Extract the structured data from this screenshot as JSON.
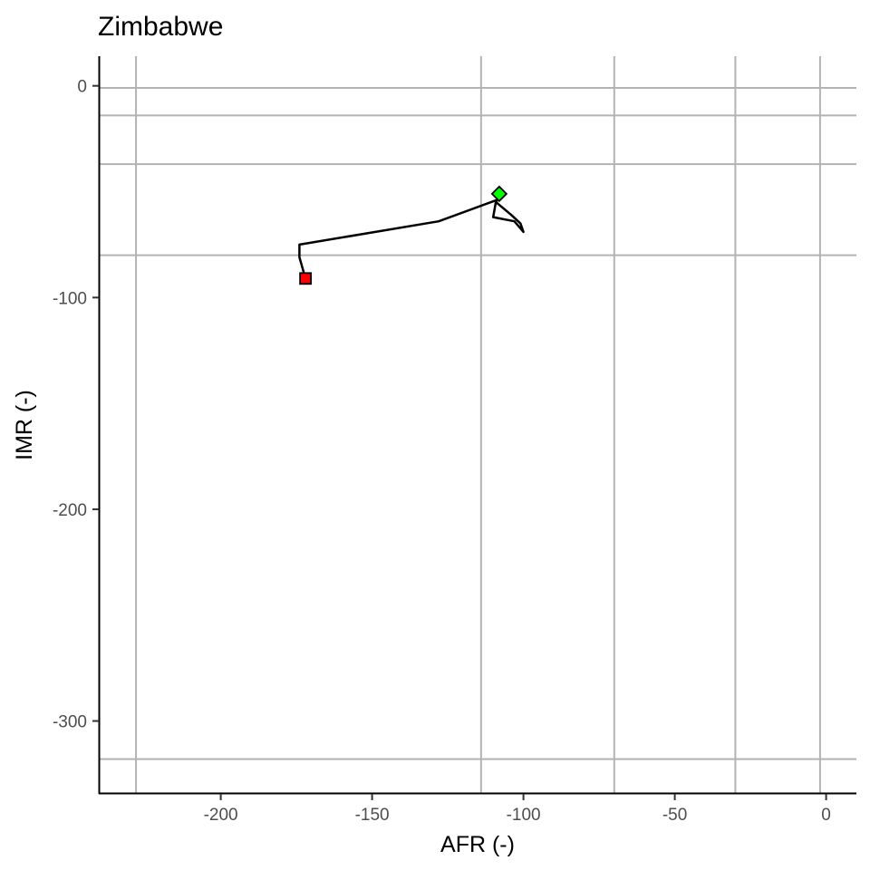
{
  "chart_data": {
    "type": "line",
    "title": "Zimbabwe",
    "xlabel": "AFR (-)",
    "ylabel": "IMR (-)",
    "xlim": [
      -240,
      10
    ],
    "ylim": [
      -334,
      14
    ],
    "x_ticks": [
      -200,
      -150,
      -100,
      -50,
      0
    ],
    "y_ticks": [
      0,
      -100,
      -200,
      -300
    ],
    "x_tick_labels": [
      "-200",
      "-150",
      "-100",
      "-50",
      "0"
    ],
    "y_tick_labels": [
      "0",
      "-100",
      "-200",
      "-300"
    ],
    "reference_lines_x": [
      -228,
      -114,
      -70,
      -30,
      -2
    ],
    "reference_lines_y": [
      -1,
      -14,
      -37,
      -80,
      -318
    ],
    "grid": false,
    "series": [
      {
        "points": [
          [
            -172,
            -91
          ],
          [
            -174,
            -81
          ],
          [
            -174,
            -75
          ],
          [
            -128,
            -64
          ],
          [
            -109,
            -54
          ],
          [
            -110,
            -62
          ],
          [
            -103,
            -64
          ],
          [
            -100,
            -69
          ],
          [
            -101,
            -65
          ],
          [
            -104,
            -61
          ],
          [
            -109,
            -55
          ],
          [
            -108,
            -51
          ]
        ],
        "color": "#000000"
      }
    ],
    "markers": {
      "start": {
        "x": -172,
        "y": -91,
        "shape": "square",
        "color": "#ff0000"
      },
      "end": {
        "x": -108,
        "y": -51,
        "shape": "diamond",
        "color": "#00ff00"
      }
    },
    "colors": {
      "reference_line": "#b3b3b3",
      "axis": "#000000",
      "path": "#000000"
    }
  }
}
